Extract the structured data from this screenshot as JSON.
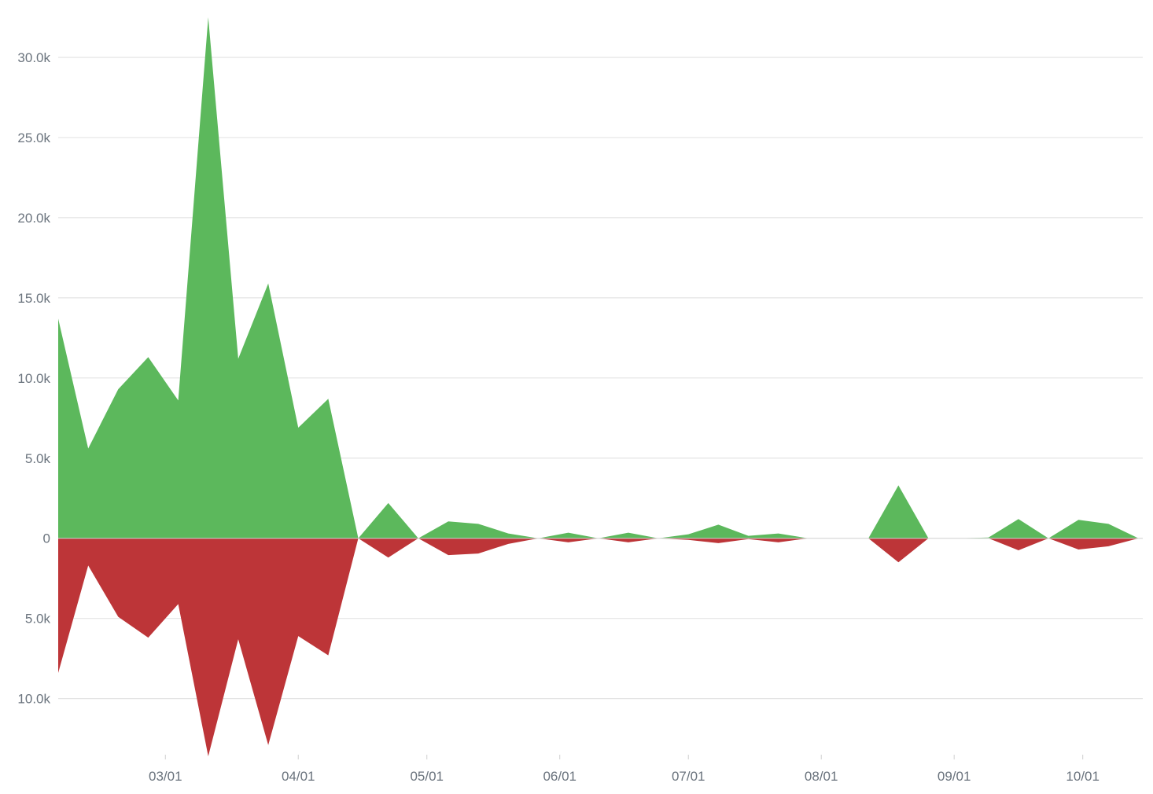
{
  "chart_data": {
    "type": "area",
    "x_axis": {
      "type": "date",
      "domain": [
        "2017-02-04",
        "2017-10-15"
      ],
      "tick_labels": [
        "03/01",
        "04/01",
        "05/01",
        "06/01",
        "07/01",
        "08/01",
        "09/01",
        "10/01"
      ],
      "tick_dates": [
        "2017-03-01",
        "2017-04-01",
        "2017-05-01",
        "2017-06-01",
        "2017-07-01",
        "2017-08-01",
        "2017-09-01",
        "2017-10-01"
      ]
    },
    "y_axis": {
      "range": [
        -13500,
        32500
      ],
      "tick_values": [
        30000,
        25000,
        20000,
        15000,
        10000,
        5000,
        0,
        -5000,
        -10000
      ],
      "tick_labels": [
        "30.0k",
        "25.0k",
        "20.0k",
        "15.0k",
        "10.0k",
        "5.0k",
        "0",
        "5.0k",
        "10.0k"
      ]
    },
    "grid": true,
    "legend": "none",
    "x": [
      "2017-02-04",
      "2017-02-11",
      "2017-02-18",
      "2017-02-25",
      "2017-03-04",
      "2017-03-11",
      "2017-03-18",
      "2017-03-25",
      "2017-04-01",
      "2017-04-08",
      "2017-04-15",
      "2017-04-22",
      "2017-04-29",
      "2017-05-06",
      "2017-05-13",
      "2017-05-20",
      "2017-05-27",
      "2017-06-03",
      "2017-06-10",
      "2017-06-17",
      "2017-06-24",
      "2017-07-01",
      "2017-07-08",
      "2017-07-15",
      "2017-07-22",
      "2017-07-29",
      "2017-08-05",
      "2017-08-12",
      "2017-08-19",
      "2017-08-26",
      "2017-09-02",
      "2017-09-09",
      "2017-09-16",
      "2017-09-23",
      "2017-09-30",
      "2017-10-07",
      "2017-10-14"
    ],
    "series": [
      {
        "color": "#5cb85c",
        "values": [
          13700,
          5600,
          9300,
          11300,
          8600,
          32500,
          11200,
          15900,
          6900,
          8700,
          0,
          2200,
          0,
          1050,
          900,
          300,
          0,
          350,
          0,
          350,
          0,
          250,
          850,
          150,
          300,
          0,
          0,
          0,
          3300,
          0,
          0,
          50,
          1200,
          0,
          1150,
          900,
          0
        ]
      },
      {
        "color": "#bd3538",
        "values": [
          -8400,
          -1700,
          -4900,
          -6200,
          -4100,
          -13600,
          -6300,
          -12900,
          -6100,
          -7300,
          0,
          -1200,
          0,
          -1050,
          -950,
          -350,
          0,
          -250,
          0,
          -250,
          0,
          -100,
          -300,
          -50,
          -250,
          0,
          0,
          0,
          -1500,
          0,
          0,
          0,
          -750,
          0,
          -700,
          -500,
          0
        ]
      }
    ]
  }
}
